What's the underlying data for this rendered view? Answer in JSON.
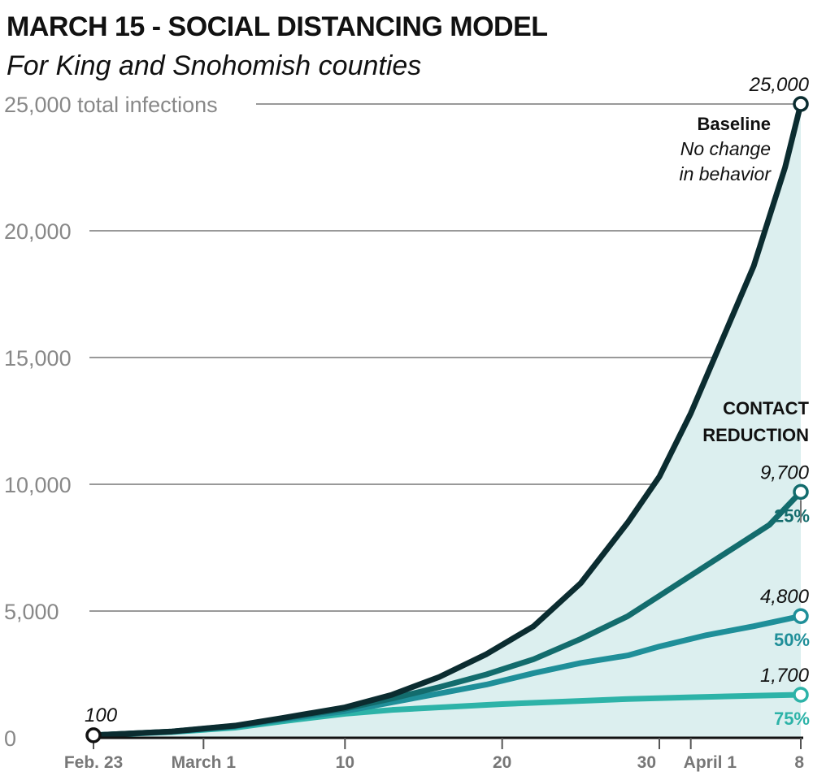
{
  "header": {
    "title": "MARCH 15 - SOCIAL DISTANCING MODEL",
    "subtitle": "For King and Snohomish counties"
  },
  "annotations": {
    "baseline_name": "Baseline",
    "baseline_note_1": "No change",
    "baseline_note_2": "in behavior",
    "contact_1": "CONTACT",
    "contact_2": "REDUCTION",
    "start_value": "100"
  },
  "colors": {
    "baseline": "#0b2c30",
    "r25": "#136c6d",
    "r50": "#1f8f99",
    "r75": "#2db3a8",
    "fill": "#dcefef",
    "grid": "#999999"
  },
  "chart_data": {
    "type": "line",
    "ylim": [
      0,
      25000
    ],
    "y_ticks": [
      {
        "value": 0,
        "label": "0"
      },
      {
        "value": 5000,
        "label": "5,000"
      },
      {
        "value": 10000,
        "label": "10,000"
      },
      {
        "value": 15000,
        "label": "15,000"
      },
      {
        "value": 20000,
        "label": "20,000"
      },
      {
        "value": 25000,
        "label": "25,000 total infections"
      }
    ],
    "x_range": [
      "2020-02-23",
      "2020-04-08"
    ],
    "x_ticks": [
      {
        "date": "2020-02-23",
        "label": "Feb. 23"
      },
      {
        "date": "2020-03-01",
        "label": "March 1"
      },
      {
        "date": "2020-03-10",
        "label": "10"
      },
      {
        "date": "2020-03-20",
        "label": "20"
      },
      {
        "date": "2020-03-30",
        "label": "30"
      },
      {
        "date": "2020-04-01",
        "label": "April 1"
      },
      {
        "date": "2020-04-08",
        "label": "8"
      }
    ],
    "series": [
      {
        "name": "Baseline",
        "end_label": "25,000",
        "points": [
          [
            "2020-02-23",
            100
          ],
          [
            "2020-02-28",
            250
          ],
          [
            "2020-03-03",
            480
          ],
          [
            "2020-03-06",
            780
          ],
          [
            "2020-03-10",
            1200
          ],
          [
            "2020-03-13",
            1700
          ],
          [
            "2020-03-16",
            2400
          ],
          [
            "2020-03-19",
            3300
          ],
          [
            "2020-03-22",
            4400
          ],
          [
            "2020-03-25",
            6100
          ],
          [
            "2020-03-28",
            8500
          ],
          [
            "2020-03-30",
            10300
          ],
          [
            "2020-04-01",
            12800
          ],
          [
            "2020-04-03",
            15700
          ],
          [
            "2020-04-05",
            18600
          ],
          [
            "2020-04-07",
            22500
          ],
          [
            "2020-04-08",
            25000
          ]
        ]
      },
      {
        "name": "25%",
        "end_label": "9,700",
        "points": [
          [
            "2020-02-23",
            100
          ],
          [
            "2020-02-28",
            250
          ],
          [
            "2020-03-03",
            470
          ],
          [
            "2020-03-06",
            760
          ],
          [
            "2020-03-10",
            1150
          ],
          [
            "2020-03-13",
            1550
          ],
          [
            "2020-03-16",
            2000
          ],
          [
            "2020-03-19",
            2500
          ],
          [
            "2020-03-22",
            3100
          ],
          [
            "2020-03-25",
            3900
          ],
          [
            "2020-03-28",
            4800
          ],
          [
            "2020-03-30",
            5600
          ],
          [
            "2020-04-01",
            6400
          ],
          [
            "2020-04-04",
            7600
          ],
          [
            "2020-04-06",
            8400
          ],
          [
            "2020-04-08",
            9700
          ]
        ]
      },
      {
        "name": "50%",
        "end_label": "4,800",
        "points": [
          [
            "2020-02-23",
            100
          ],
          [
            "2020-02-28",
            240
          ],
          [
            "2020-03-03",
            450
          ],
          [
            "2020-03-06",
            720
          ],
          [
            "2020-03-10",
            1050
          ],
          [
            "2020-03-13",
            1400
          ],
          [
            "2020-03-16",
            1750
          ],
          [
            "2020-03-19",
            2100
          ],
          [
            "2020-03-22",
            2550
          ],
          [
            "2020-03-25",
            2950
          ],
          [
            "2020-03-28",
            3250
          ],
          [
            "2020-03-30",
            3600
          ],
          [
            "2020-04-02",
            4050
          ],
          [
            "2020-04-05",
            4400
          ],
          [
            "2020-04-08",
            4800
          ]
        ]
      },
      {
        "name": "75%",
        "end_label": "1,700",
        "points": [
          [
            "2020-02-23",
            100
          ],
          [
            "2020-02-28",
            230
          ],
          [
            "2020-03-03",
            400
          ],
          [
            "2020-03-06",
            650
          ],
          [
            "2020-03-10",
            950
          ],
          [
            "2020-03-13",
            1100
          ],
          [
            "2020-03-16",
            1200
          ],
          [
            "2020-03-20",
            1330
          ],
          [
            "2020-03-24",
            1430
          ],
          [
            "2020-03-28",
            1530
          ],
          [
            "2020-04-01",
            1600
          ],
          [
            "2020-04-05",
            1660
          ],
          [
            "2020-04-08",
            1700
          ]
        ]
      }
    ]
  }
}
